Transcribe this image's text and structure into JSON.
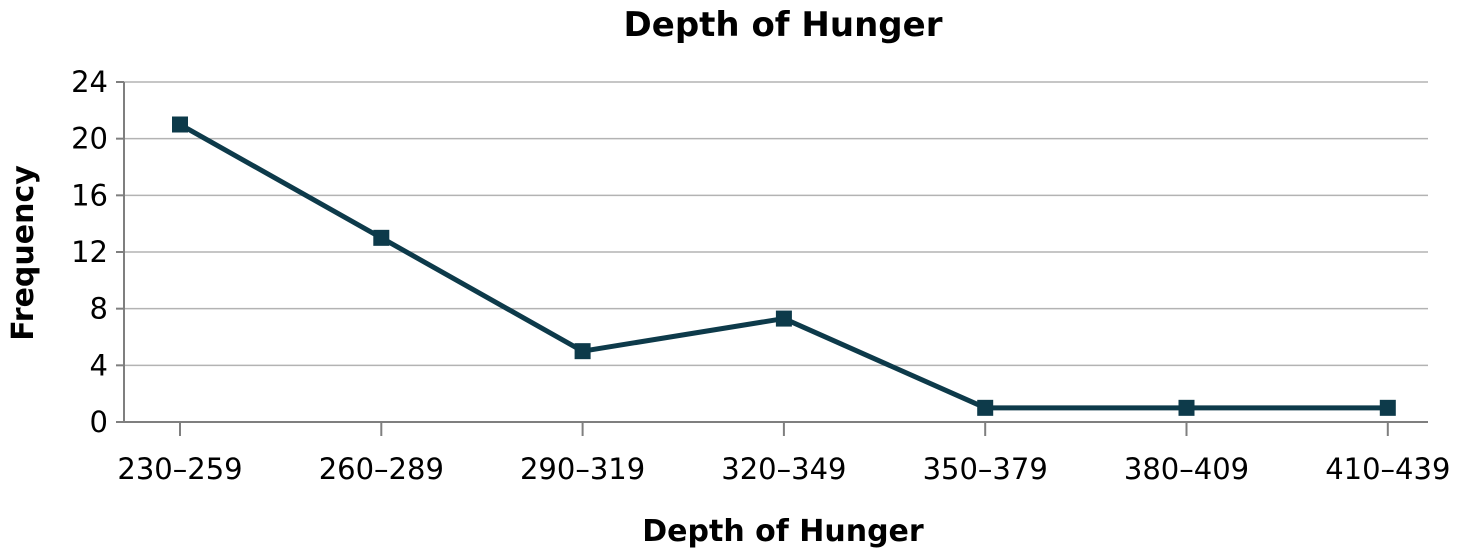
{
  "chart_data": {
    "type": "line",
    "title": "Depth of Hunger",
    "xlabel": "Depth of Hunger",
    "ylabel": "Frequency",
    "categories": [
      "230–259",
      "260–289",
      "290–319",
      "320–349",
      "350–379",
      "380–409",
      "410–439"
    ],
    "series": [
      {
        "values": [
          21,
          13,
          5,
          7.3,
          1,
          1,
          1
        ],
        "color": "#0d3a4a",
        "marker": "square"
      }
    ],
    "ylim": [
      0,
      24
    ],
    "yticks": [
      0,
      4,
      8,
      12,
      16,
      20,
      24
    ],
    "grid": true,
    "legend": "none"
  }
}
